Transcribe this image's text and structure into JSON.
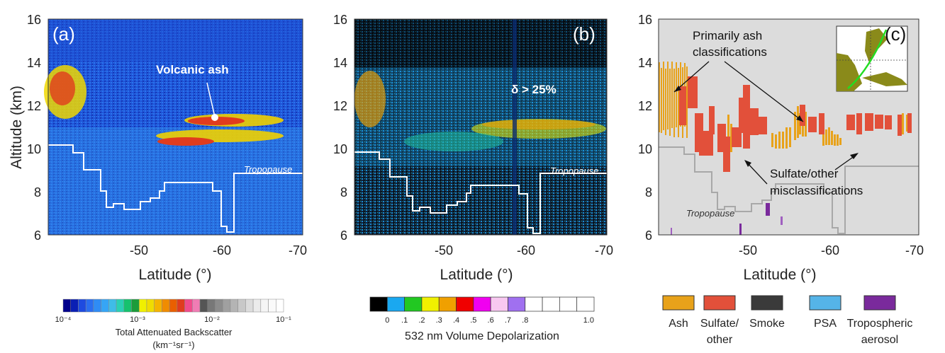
{
  "chart_data": [
    {
      "panel": "(a)",
      "type": "heatmap",
      "ylabel": "Altitude (km)",
      "xlabel": "Latitude (°)",
      "xticks": [
        "-50",
        "-60",
        "-70"
      ],
      "yticks": [
        "6",
        "8",
        "10",
        "12",
        "14",
        "16"
      ],
      "ylim": [
        6,
        16
      ],
      "xlim": [
        -41,
        -70
      ],
      "annotations": [
        "Volcanic ash",
        "Tropopause"
      ],
      "colorbar": {
        "label_line1": "Total Attenuated Backscatter",
        "label_line2": "(km⁻¹sr⁻¹)",
        "ticks": [
          "10⁻⁴",
          "10⁻³",
          "10⁻²",
          "10⁻¹"
        ],
        "colors": [
          "#00008c",
          "#0a1fb4",
          "#1e4be0",
          "#2a6ef0",
          "#2f8cf5",
          "#36a5f5",
          "#3fbce8",
          "#2ad0b4",
          "#16c26e",
          "#1c9c3a",
          "#f0f000",
          "#f0dc00",
          "#f5b400",
          "#f08c00",
          "#e95f00",
          "#e03c1e",
          "#f04c8c",
          "#f07cb4",
          "#555555",
          "#787878",
          "#8c8c8c",
          "#a0a0a0",
          "#b4b4b4",
          "#c8c8c8",
          "#dcdcdc",
          "#ebebeb",
          "#f5f5f5",
          "#fafafa",
          "#ffffff"
        ]
      }
    },
    {
      "panel": "(b)",
      "type": "heatmap",
      "xlabel": "Latitude (°)",
      "xticks": [
        "-50",
        "-60",
        "-70"
      ],
      "yticks": [
        "6",
        "8",
        "10",
        "12",
        "14",
        "16"
      ],
      "ylim": [
        6,
        16
      ],
      "xlim": [
        -41,
        -70
      ],
      "annotations": [
        "δ > 25%",
        "Tropopause"
      ],
      "colorbar": {
        "label": "532 nm Volume Depolarization",
        "ticks": [
          "0",
          ".1",
          ".2",
          ".3",
          ".4",
          ".5",
          ".6",
          ".7",
          ".8",
          "1.0"
        ],
        "colors": [
          "#000000",
          "#1aa8f0",
          "#22c822",
          "#f0f000",
          "#f0a000",
          "#f00000",
          "#f000f0",
          "#f8c8f0",
          "#a070f0",
          "#ffffff",
          "#ffffff",
          "#ffffff",
          "#ffffff"
        ]
      }
    },
    {
      "panel": "(c)",
      "type": "heatmap",
      "xlabel": "Latitude (°)",
      "xticks": [
        "-50",
        "-60",
        "-70"
      ],
      "yticks": [
        "6",
        "8",
        "10",
        "12",
        "14",
        "16"
      ],
      "ylim": [
        6,
        16
      ],
      "xlim": [
        -41,
        -70
      ],
      "annotations": {
        "primarily_ash_line1": "Primarily ash",
        "primarily_ash_line2": "classifications",
        "misclass_line1": "Sulfate/other",
        "misclass_line2": "misclassifications",
        "tropopause": "Tropopause"
      },
      "legend": [
        {
          "label_line1": "Ash",
          "label_line2": "",
          "color": "#e8a21a"
        },
        {
          "label_line1": "Sulfate/",
          "label_line2": "other",
          "color": "#e2503a"
        },
        {
          "label_line1": "Smoke",
          "label_line2": "",
          "color": "#3a3a3a"
        },
        {
          "label_line1": "PSA",
          "label_line2": "",
          "color": "#55b4e8"
        },
        {
          "label_line1": "Tropospheric",
          "label_line2": "aerosol",
          "color": "#7a2a9c"
        }
      ]
    }
  ]
}
